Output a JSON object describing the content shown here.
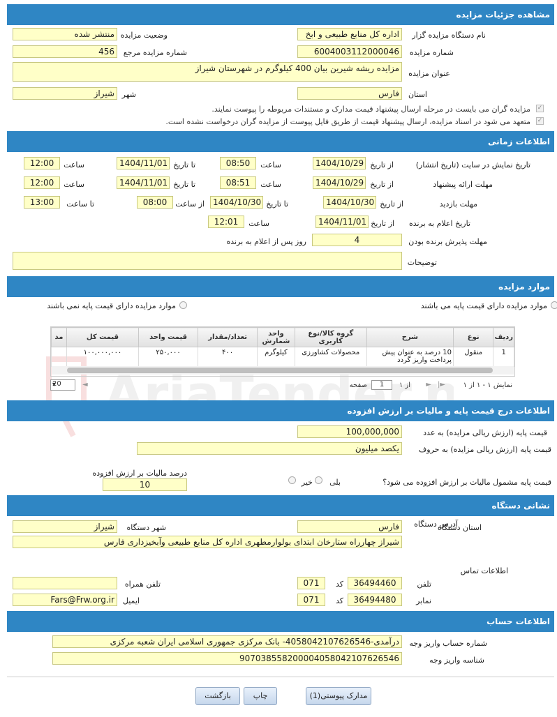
{
  "sections": {
    "details": "مشاهده جزئیات مزایده",
    "timing": "اطلاعات زمانی",
    "items": "موارد مزایده",
    "price": "اطلاعات درج قیمت پایه و مالیات بر ارزش افزوده",
    "address": "نشانی دستگاه",
    "account": "اطلاعات حساب"
  },
  "details": {
    "org_label": "نام دستگاه مزایده گزار",
    "org_value": "اداره کل منابع طبیعی و ابخ",
    "status_label": "وضعیت مزایده",
    "status_value": "منتشر شده",
    "number_label": "شماره مزایده",
    "number_value": "6004003112000046",
    "ref_label": "شماره مزایده مرجع",
    "ref_value": "456",
    "title_label": "عنوان مزایده",
    "title_value": "مزایده ریشه شیرین بیان 400 کیلوگرم در شهرستان شیراز",
    "province_label": "استان",
    "province_value": "فارس",
    "city_label": "شهر",
    "city_value": "شیراز",
    "check1": "مزایده گران می بایست در مرحله ارسال پیشنهاد قیمت مدارک و مستندات مربوطه را پیوست نمایند.",
    "check2": "متعهد می شود در اسناد مزایده، ارسال پیشنهاد قیمت از طریق فایل پیوست از مزایده گران درخواست نشده است."
  },
  "timing": {
    "display_label": "تاریخ نمایش در سایت (تاریخ انتشار)",
    "offer_label": "مهلت ارائه پیشنهاد",
    "visit_label": "مهلت بازدید",
    "announce_label": "تاریخ اعلام به برنده",
    "accept_label": "مهلت پذیرش برنده بودن",
    "desc_label": "توضیحات",
    "from_date": "از تاریخ",
    "to_date": "تا تاریخ",
    "hour": "ساعت",
    "from_hour": "از ساعت",
    "to_hour": "تا ساعت",
    "days_after": "روز پس از اعلام به برنده",
    "display_from_date": "1404/10/29",
    "display_from_time": "08:50",
    "display_to_date": "1404/11/01",
    "display_to_time": "12:00",
    "offer_from_date": "1404/10/29",
    "offer_from_time": "08:51",
    "offer_to_date": "1404/11/01",
    "offer_to_time": "12:00",
    "visit_from_date": "1404/10/30",
    "visit_to_date": "1404/10/30",
    "visit_from_hour": "08:00",
    "visit_to_hour": "13:00",
    "announce_date": "1404/11/01",
    "announce_time": "12:01",
    "accept_days": "4",
    "desc_value": ""
  },
  "items": {
    "radio_with_base": "موارد مزایده دارای قیمت پایه می باشند",
    "radio_without_base": "موارد مزایده دارای قیمت پایه نمی باشند",
    "headers": [
      "ردیف",
      "نوع",
      "شرح",
      "گروه کالا/نوع کاربری",
      "واحد شمارش",
      "تعداد/مقدار",
      "قیمت واحد",
      "قیمت کل",
      "مد"
    ],
    "rows": [
      [
        "1",
        "منقول",
        "10 درصد به عنوان پیش پرداخت واریز گردد",
        "محصولات کشاورزی",
        "کیلوگرم",
        "۴۰۰",
        "۲۵۰,۰۰۰",
        "۱۰۰,۰۰۰,۰۰۰",
        ""
      ]
    ],
    "pager_display": "نمایش ۱ - ۱ از ۱",
    "pager_page": "صفحه",
    "pager_page_value": "1",
    "pager_of": "از ۱",
    "pager_size": "20"
  },
  "price": {
    "base_num_label": "قیمت پایه (ارزش ریالی مزایده) به عدد",
    "base_num_value": "100,000,000",
    "base_text_label": "قیمت پایه (ارزش ریالی مزایده) به حروف",
    "base_text_value": "یکصد میلیون",
    "vat_question": "قیمت پایه مشمول مالیات بر ارزش افزوده می شود؟",
    "yes": "بلی",
    "no": "خیر",
    "vat_percent_label": "درصد مالیات بر ارزش افزوده",
    "vat_percent_value": "10"
  },
  "address": {
    "province_label": "استان دستگاه",
    "province_value": "فارس",
    "city_label": "شهر دستگاه",
    "city_value": "شیراز",
    "addr_label": "آدرس دستگاه",
    "addr_value": "شیراز چهارراه ستارخان ابتدای بولوارمطهری اداره کل منابع طبیعی وآبخیزداری فارس",
    "contact_title": "اطلاعات تماس",
    "phone_label": "تلفن",
    "phone_value": "36494460",
    "phone_code": "071",
    "fax_label": "نمابر",
    "fax_value": "36494480",
    "fax_code": "071",
    "code_label": "کد",
    "mobile_label": "تلفن همراه",
    "mobile_value": "",
    "email_label": "ایمیل",
    "email_value": "Fars@Frw.org.ir"
  },
  "account": {
    "acc_label": "شماره حساب واریز وجه",
    "acc_value": "درآمدی-4058042107626546- بانک مرکزی جمهوری اسلامی ایران شعبه مرکزی",
    "id_label": "شناسه واریز وجه",
    "id_value": "907038558200004058042107626546"
  },
  "buttons": {
    "attachments": "مدارک پیوستی(1)",
    "print": "چاپ",
    "back": "بازگشت"
  },
  "watermark": "AriaTender.neT"
}
